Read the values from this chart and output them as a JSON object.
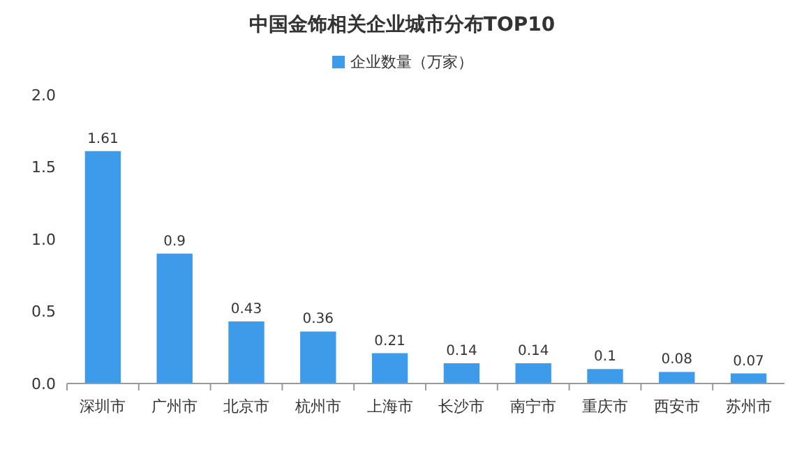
{
  "chart_data": {
    "type": "bar",
    "title": "中国金饰相关企业城市分布TOP10",
    "categories": [
      "深圳市",
      "广州市",
      "北京市",
      "杭州市",
      "上海市",
      "长沙市",
      "南宁市",
      "重庆市",
      "西安市",
      "苏州市"
    ],
    "series": [
      {
        "name": "企业数量（万家）",
        "color": "#3d9be9",
        "values": [
          1.61,
          0.9,
          0.43,
          0.36,
          0.21,
          0.14,
          0.14,
          0.1,
          0.08,
          0.07
        ]
      }
    ],
    "ylim": [
      0,
      2
    ],
    "yticks": [
      {
        "value": 0,
        "label": "0.0"
      },
      {
        "value": 0.5,
        "label": "0.5"
      },
      {
        "value": 1,
        "label": "1.0"
      },
      {
        "value": 1.5,
        "label": "1.5"
      },
      {
        "value": 2,
        "label": "2.0"
      }
    ],
    "data_labels": true,
    "legend": "top",
    "grid": false
  }
}
